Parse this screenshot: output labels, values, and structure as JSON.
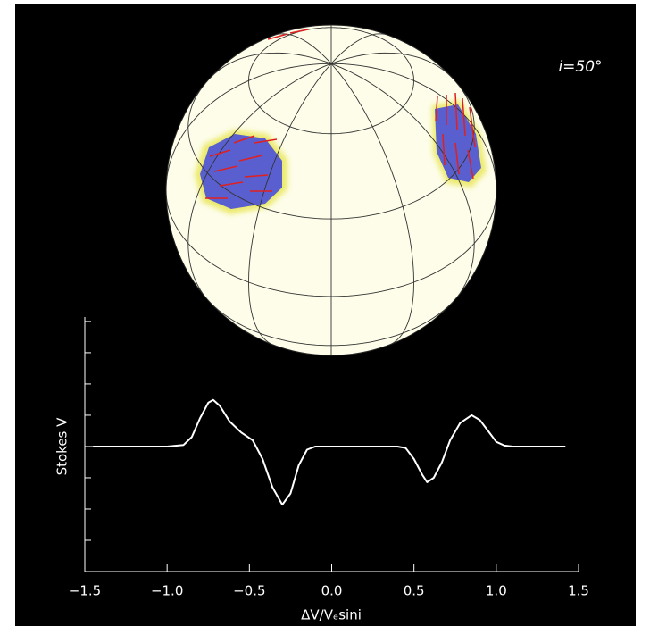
{
  "chart_data": {
    "type": "line",
    "annotation": "i=50°",
    "x_label": "ΔV/Vₑsini",
    "y_label": "Stokes V",
    "x": [
      -1.45,
      -1.0,
      -0.9,
      -0.85,
      -0.8,
      -0.75,
      -0.72,
      -0.68,
      -0.62,
      -0.55,
      -0.48,
      -0.42,
      -0.36,
      -0.3,
      -0.25,
      -0.2,
      -0.15,
      -0.1,
      0.0,
      0.4,
      0.45,
      0.5,
      0.55,
      0.58,
      0.62,
      0.67,
      0.72,
      0.78,
      0.85,
      0.9,
      0.95,
      1.0,
      1.05,
      1.1,
      1.42
    ],
    "values": [
      0,
      0,
      0.05,
      0.3,
      0.9,
      1.4,
      1.49,
      1.3,
      0.8,
      0.45,
      0.2,
      -0.4,
      -1.3,
      -1.86,
      -1.5,
      -0.6,
      -0.1,
      0,
      0,
      0,
      -0.05,
      -0.4,
      -0.9,
      -1.14,
      -1.0,
      -0.5,
      0.2,
      0.75,
      1.0,
      0.85,
      0.5,
      0.15,
      0.03,
      0,
      0
    ],
    "color": "#ffffff",
    "xlim": [
      -1.5,
      1.5
    ],
    "xticks": [
      {
        "value": -1.5,
        "label": "−1.5"
      },
      {
        "value": -1,
        "label": "−1.0"
      },
      {
        "value": -0.5,
        "label": "−0.5"
      },
      {
        "value": 0,
        "label": "0.0"
      },
      0.5,
      {
        "value": 1,
        "label": "1.0"
      },
      1.5
    ],
    "ylim": [
      -4,
      4.14
    ],
    "yticks": [
      -4,
      -3,
      -2,
      -1,
      0,
      1,
      2,
      3,
      4
    ]
  }
}
